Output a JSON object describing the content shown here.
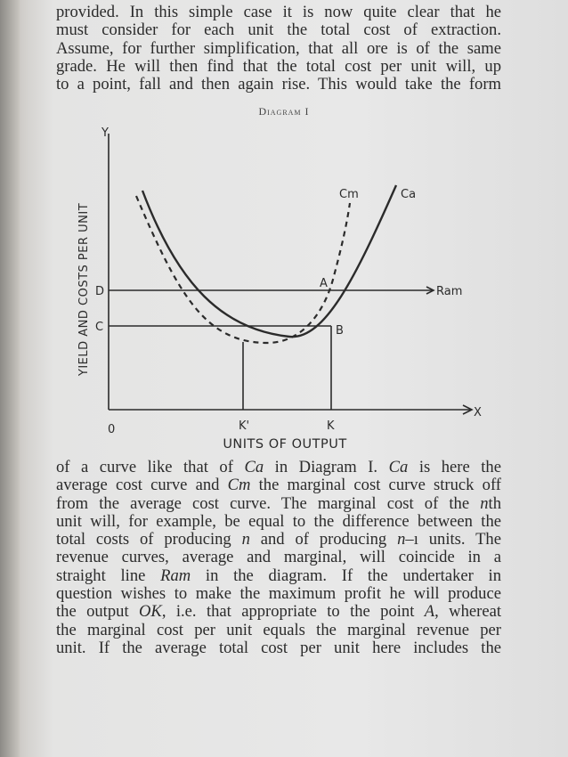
{
  "paragraph_top": [
    "provided. In this simple case it is now quite clear that he",
    "must consider for each unit the total cost of extraction.",
    "Assume, for further simplification, that all ore is of the same",
    "grade. He will then find that the total cost per unit will, up",
    "to a point, fall and then again rise. This would take the form"
  ],
  "diagram": {
    "caption": "Diagram I",
    "y_axis_letter": "Y",
    "x_axis_letter": "X",
    "origin": "0",
    "y_label": "YIELD AND COSTS PER UNIT",
    "x_label": "UNITS OF OUTPUT",
    "curve_cm": "Cm",
    "curve_ca": "Ca",
    "line_ram": "Ram",
    "point_a": "A",
    "point_b": "B",
    "level_d": "D",
    "level_c": "C",
    "tick_k_prime": "K'",
    "tick_k": "K"
  },
  "paragraph_bottom": [
    [
      "of a curve like that of ",
      {
        "i": "Ca"
      },
      " in Diagram I. ",
      {
        "i": "Ca"
      },
      " is here the"
    ],
    [
      "average cost curve and ",
      {
        "i": "Cm"
      },
      " the marginal cost curve struck off"
    ],
    [
      "from the average cost curve. The marginal cost of the ",
      {
        "i": "n"
      },
      "th"
    ],
    [
      "unit will, for example, be equal to the difference between the"
    ],
    [
      "total costs of producing ",
      {
        "i": "n"
      },
      " and of producing ",
      {
        "i": "n"
      },
      "–ı units. The"
    ],
    [
      "revenue curves, average and marginal, will coincide in a"
    ],
    [
      "straight line ",
      {
        "i": "Ram"
      },
      " in the diagram. If the undertaker in"
    ],
    [
      "question wishes to make the maximum profit he will produce"
    ],
    [
      "the output ",
      {
        "i": "OK"
      },
      ", i.e. that appropriate to the point ",
      {
        "i": "A"
      },
      ", whereat"
    ],
    [
      "the marginal cost per unit equals the marginal revenue per"
    ],
    [
      "unit. If the average total cost per unit here includes the"
    ]
  ]
}
